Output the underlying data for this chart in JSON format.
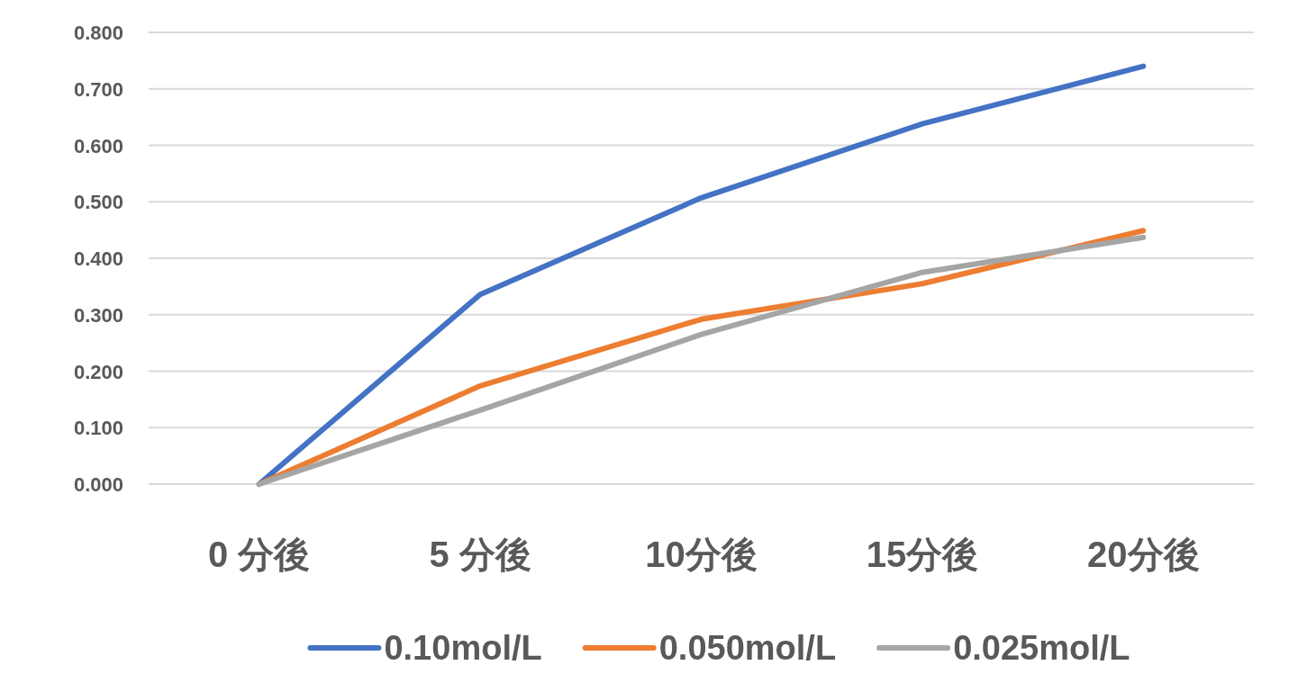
{
  "chart_data": {
    "type": "line",
    "categories": [
      "0 分後",
      "5 分後",
      "10分後",
      "15分後",
      "20分後"
    ],
    "series": [
      {
        "name": "0.10mol/L",
        "color": "#4472c4",
        "values": [
          0,
          0.336,
          0.507,
          0.638,
          0.74
        ]
      },
      {
        "name": "0.050mol/L",
        "color": "#ed7d31",
        "values": [
          0,
          0.174,
          0.292,
          0.355,
          0.449
        ]
      },
      {
        "name": "0.025mol/L",
        "color": "#a5a5a5",
        "values": [
          0,
          0.131,
          0.265,
          0.375,
          0.437
        ]
      }
    ],
    "ylim": [
      0,
      0.8
    ],
    "yticks": [
      {
        "value": 0,
        "label": "0.000"
      },
      {
        "value": 0.1,
        "label": "0.100"
      },
      {
        "value": 0.2,
        "label": "0.200"
      },
      {
        "value": 0.3,
        "label": "0.300"
      },
      {
        "value": 0.4,
        "label": "0.400"
      },
      {
        "value": 0.5,
        "label": "0.500"
      },
      {
        "value": 0.6,
        "label": "0.600"
      },
      {
        "value": 0.7,
        "label": "0.700"
      },
      {
        "value": 0.8,
        "label": "0.800"
      }
    ],
    "grid": "y",
    "legend": "bottom"
  }
}
